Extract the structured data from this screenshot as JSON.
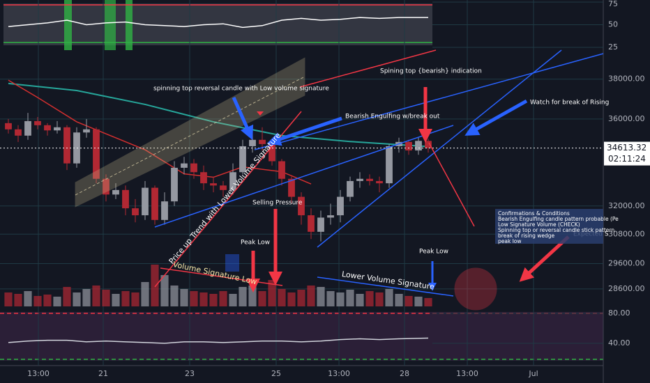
{
  "chart_data": {
    "type": "candlestick",
    "open": [
      35800,
      35500,
      35200,
      35900,
      35700,
      35450,
      35600,
      33900,
      35350,
      35500,
      33200,
      32500,
      32700,
      31900,
      31600,
      32800,
      31400,
      32200,
      33700,
      33900,
      33500,
      33000,
      32900,
      32700,
      33500,
      34700,
      35000,
      34800,
      34000,
      33200,
      32400,
      31600,
      30900,
      31500,
      31600,
      32400,
      33100,
      33200,
      33100,
      33000,
      34700,
      34900,
      34500,
      34950
    ],
    "high": [
      36000,
      35700,
      36300,
      36100,
      35800,
      35900,
      35700,
      35600,
      36000,
      35600,
      33400,
      33000,
      32900,
      32300,
      33100,
      32900,
      32600,
      34000,
      34200,
      34100,
      33800,
      33300,
      33100,
      33900,
      35000,
      35400,
      35600,
      35000,
      34100,
      33300,
      32600,
      31900,
      31800,
      32100,
      32700,
      33300,
      33500,
      33400,
      33300,
      34800,
      35100,
      35000,
      35100,
      35050
    ],
    "low": [
      35300,
      34900,
      35000,
      35500,
      35200,
      35300,
      33600,
      33700,
      35100,
      33000,
      32200,
      32300,
      31600,
      31300,
      31400,
      31200,
      31200,
      32000,
      33400,
      33200,
      32700,
      32600,
      32400,
      32500,
      33400,
      34400,
      34500,
      33800,
      32900,
      32100,
      31200,
      30600,
      30500,
      31200,
      31300,
      32200,
      32800,
      32900,
      32600,
      32800,
      34400,
      34300,
      34300,
      34400
    ],
    "close": [
      35500,
      35200,
      35900,
      35700,
      35450,
      35600,
      33900,
      35350,
      35500,
      33200,
      32500,
      32700,
      31900,
      31600,
      32800,
      31400,
      32200,
      33700,
      33900,
      33500,
      33000,
      32900,
      32700,
      33500,
      34700,
      35000,
      34800,
      34000,
      33200,
      32400,
      31600,
      30900,
      31500,
      31600,
      32400,
      33100,
      33200,
      33100,
      33000,
      34700,
      34900,
      34500,
      34950,
      34613.32
    ],
    "volume": [
      20,
      18,
      22,
      15,
      17,
      14,
      28,
      20,
      25,
      30,
      24,
      18,
      22,
      20,
      35,
      60,
      45,
      30,
      25,
      22,
      20,
      18,
      22,
      18,
      28,
      30,
      22,
      38,
      25,
      20,
      24,
      30,
      28,
      22,
      20,
      24,
      18,
      22,
      20,
      25,
      18,
      15,
      14,
      12
    ],
    "volume_lim": [
      0,
      100
    ],
    "up_color": "#9598a1",
    "down_color": "#b22833",
    "ylim": [
      27930,
      39410
    ],
    "log_scale": true,
    "yticks": [
      {
        "value": 38000,
        "label": "38000.00"
      },
      {
        "value": 36000,
        "label": "36000.00"
      },
      {
        "value": 32000,
        "label": "32000.00"
      },
      {
        "value": 30800,
        "label": "30800.00"
      },
      {
        "value": 29600,
        "label": "29600.00"
      },
      {
        "value": 28600,
        "label": "28600.00"
      }
    ],
    "ma_slow": {
      "color": "#26a69a",
      "x": [
        0,
        7,
        14,
        21,
        28,
        35,
        43
      ],
      "values": [
        37775,
        37418,
        36720,
        35865,
        35200,
        34920,
        34680
      ]
    },
    "ma_fast": {
      "color": "#d32f2f",
      "x": [
        0,
        3,
        7,
        14,
        18,
        21,
        24,
        28,
        31
      ],
      "values": [
        37946,
        37065,
        35865,
        34532,
        33424,
        33270,
        33740,
        33520,
        32970
      ]
    },
    "osc_top": {
      "ylim": [
        25,
        75
      ],
      "yticks": [
        75,
        50,
        25
      ],
      "x": [
        0,
        2,
        4,
        6,
        8,
        10,
        12,
        14,
        16,
        18,
        20,
        22,
        24,
        26,
        28,
        30,
        32,
        34,
        36,
        38,
        40,
        43
      ],
      "values": [
        48,
        50,
        52,
        55,
        50,
        52,
        53,
        50,
        49,
        48,
        50,
        51,
        47,
        49,
        55,
        57,
        55,
        56,
        58,
        57,
        58,
        58
      ]
    },
    "osc_bottom": {
      "ylim": [
        10.2,
        89.3
      ],
      "yticks": [
        {
          "value": 80,
          "label": "80.00"
        },
        {
          "value": 40,
          "label": "40.00"
        }
      ],
      "x": [
        0,
        2,
        4,
        6,
        8,
        10,
        12,
        14,
        16,
        18,
        20,
        22,
        24,
        26,
        28,
        30,
        32,
        34,
        36,
        38,
        40,
        43
      ],
      "values": [
        41,
        43,
        44,
        44,
        42,
        43,
        42,
        41,
        40,
        42,
        42,
        41,
        42,
        43,
        43,
        42,
        43,
        45,
        46,
        45,
        46,
        47
      ]
    },
    "countdown": "02:11:24",
    "x_labels": [
      "13:00",
      "21",
      "23",
      "25",
      "13:00",
      "28",
      "13:00",
      "Jul"
    ],
    "annotations": {
      "spin": "spinning top reversal candle with Low volume signature",
      "spin_bear": "Spining top {bearish} indication",
      "engulf": "Bearish Engulfing w/break out",
      "watch": "Watch for break of Rising",
      "uptrend": "Price up Trend with Lower Volume Signature",
      "vol_low": "Volume Signature Low",
      "selling": "Selling Pressure",
      "peak1": "Peak Low",
      "peak2": "Peak Low",
      "lower_vol": "Lower Volume Signature",
      "expected": "Expected S"
    },
    "conditions": [
      "Confirmations & Conditions",
      "Bearish Engulfing candle pattern probable (Pe",
      "Low Signature Volume (CHECK)",
      "Spinning top or reversal candle stick pattern",
      "break of rising wedge",
      "peak low"
    ]
  }
}
